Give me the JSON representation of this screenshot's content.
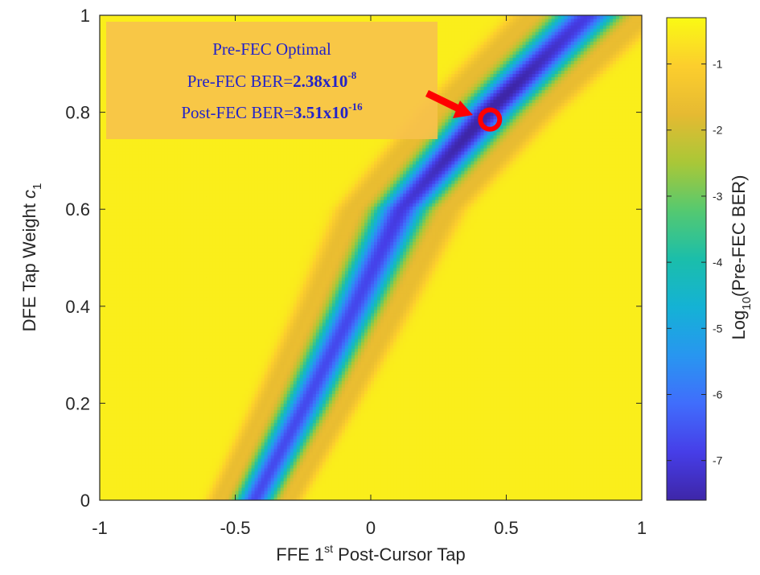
{
  "chart_data": {
    "type": "heatmap",
    "xlabel": {
      "main": "FFE 1",
      "sup": "st",
      "rest": " Post-Cursor Tap"
    },
    "ylabel": {
      "main": "DFE Tap Weight ",
      "var": "c",
      "sub": "1"
    },
    "colorbar_label": {
      "pre": "Log",
      "sub": "10",
      "post": "(Pre-FEC BER)"
    },
    "xlim": [
      -1,
      1
    ],
    "ylim": [
      0,
      1
    ],
    "x_ticks": [
      -1,
      -0.5,
      0,
      0.5,
      1
    ],
    "x_tick_labels": [
      "-1",
      "-0.5",
      "0",
      "0.5",
      "1"
    ],
    "y_ticks": [
      0,
      0.2,
      0.4,
      0.6,
      0.8,
      1
    ],
    "y_tick_labels": [
      "0",
      "0.2",
      "0.4",
      "0.6",
      "0.8",
      "1"
    ],
    "colorbar_ticks": [
      -1,
      -2,
      -3,
      -4,
      -5,
      -6,
      -7
    ],
    "colorbar_tick_labels": [
      "-1",
      "-2",
      "-3",
      "-4",
      "-5",
      "-6",
      "-7"
    ],
    "colorbar_range": [
      -7.6,
      -0.3
    ],
    "colormap": "parula",
    "valley_ridge": [
      {
        "y": 0.0,
        "x": -0.43
      },
      {
        "y": 0.2,
        "x": -0.24
      },
      {
        "y": 0.4,
        "x": -0.06
      },
      {
        "y": 0.6,
        "x": 0.11
      },
      {
        "y": 0.8,
        "x": 0.43
      },
      {
        "y": 1.0,
        "x": 0.8
      }
    ],
    "optimum": {
      "x": 0.44,
      "y": 0.785,
      "log10_ber": -7.62
    },
    "annotation": {
      "line1": "Pre-FEC Optimal",
      "line2_label": "Pre-FEC BER=",
      "line2_mant": "2.38x10",
      "line2_exp": "-8",
      "line3_label": "Post-FEC BER=",
      "line3_mant": "3.51x10",
      "line3_exp": "-16"
    },
    "colors": {
      "annotation_box": "#f7c24c",
      "annotation_text": "#2323c8",
      "marker": "#ff0000",
      "arrow": "#ff0000"
    }
  }
}
